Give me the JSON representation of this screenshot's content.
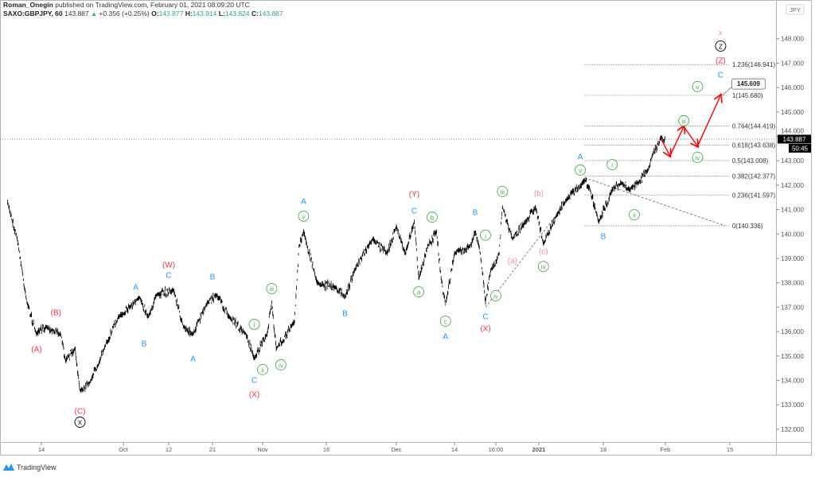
{
  "header": {
    "author": "Roman_Onegin",
    "published": "published on TradingView.com, February 01, 2021 08:09:20 UTC",
    "symbol": "SAXO:GBPJPY, 60",
    "last": "143.887",
    "change": "+0.356 (+0.25%)",
    "o_label": "O:",
    "o": "143.877",
    "h_label": "H:",
    "h": "143.914",
    "l_label": "L:",
    "l": "143.824",
    "c_label": "C:",
    "c": "143.887"
  },
  "footer": {
    "brand": "TradingView"
  },
  "colors": {
    "up": "#26a69a",
    "wave_red": "#f23645",
    "wave_blue": "#2196f3",
    "wave_green": "#4caf50",
    "wave_pink": "#f48fb1",
    "arrow": "#ff0000",
    "candle": "#000000"
  },
  "chart_data": {
    "type": "line",
    "currency": "JPY",
    "last_price": "143.887",
    "countdown": "50:45",
    "ylim": [
      131.5,
      148.8
    ],
    "y_ticks": [
      "148.000",
      "147.000",
      "146.000",
      "145.000",
      "144.000",
      "143.000",
      "142.000",
      "141.000",
      "140.000",
      "139.000",
      "138.000",
      "137.000",
      "136.000",
      "135.000",
      "134.000",
      "133.000",
      "132.000"
    ],
    "x_ticks": [
      {
        "label": "14",
        "date": "2020-09-14"
      },
      {
        "label": "Oct",
        "date": "2020-10-01"
      },
      {
        "label": "12",
        "date": "2020-10-12"
      },
      {
        "label": "21",
        "date": "2020-10-21"
      },
      {
        "label": "Nov",
        "date": "2020-11-02"
      },
      {
        "label": "16",
        "date": "2020-11-16"
      },
      {
        "label": "Dec",
        "date": "2020-12-01"
      },
      {
        "label": "14",
        "date": "2020-12-14"
      },
      {
        "label": "16:00",
        "date": "2020-12-22"
      },
      {
        "label": "2021",
        "date": "2021-01-04"
      },
      {
        "label": "18",
        "date": "2021-01-18"
      },
      {
        "label": "Feb",
        "date": "2021-02-01"
      },
      {
        "label": "15",
        "date": "2021-02-15"
      }
    ],
    "price_path": [
      [
        "2020-09-07",
        141.3
      ],
      [
        "2020-09-09",
        139.8
      ],
      [
        "2020-09-11",
        137.2
      ],
      [
        "2020-09-13",
        135.9
      ],
      [
        "2020-09-15",
        136.2
      ],
      [
        "2020-09-18",
        135.9
      ],
      [
        "2020-09-19",
        134.8
      ],
      [
        "2020-09-21",
        135.3
      ],
      [
        "2020-09-22",
        133.6
      ],
      [
        "2020-09-24",
        133.9
      ],
      [
        "2020-09-27",
        135.3
      ],
      [
        "2020-09-30",
        136.6
      ],
      [
        "2020-10-05",
        137.4
      ],
      [
        "2020-10-07",
        136.6
      ],
      [
        "2020-10-09",
        137.5
      ],
      [
        "2020-10-13",
        137.7
      ],
      [
        "2020-10-15",
        136.2
      ],
      [
        "2020-10-17",
        135.9
      ],
      [
        "2020-10-20",
        137.2
      ],
      [
        "2020-10-22",
        137.5
      ],
      [
        "2020-10-25",
        136.6
      ],
      [
        "2020-10-29",
        135.9
      ],
      [
        "2020-10-31",
        134.9
      ],
      [
        "2020-11-03",
        135.9
      ],
      [
        "2020-11-04",
        137.2
      ],
      [
        "2020-11-05",
        135.3
      ],
      [
        "2020-11-09",
        136.4
      ],
      [
        "2020-11-10",
        139.5
      ],
      [
        "2020-11-11",
        140.1
      ],
      [
        "2020-11-14",
        138.0
      ],
      [
        "2020-11-18",
        137.8
      ],
      [
        "2020-11-20",
        137.4
      ],
      [
        "2020-11-22",
        138.5
      ],
      [
        "2020-11-26",
        139.8
      ],
      [
        "2020-11-29",
        139.2
      ],
      [
        "2020-12-01",
        140.3
      ],
      [
        "2020-12-03",
        139.2
      ],
      [
        "2020-12-05",
        140.5
      ],
      [
        "2020-12-06",
        138.2
      ],
      [
        "2020-12-08",
        139.5
      ],
      [
        "2020-12-10",
        140.1
      ],
      [
        "2020-12-11",
        138.2
      ],
      [
        "2020-12-12",
        137.1
      ],
      [
        "2020-12-14",
        139.2
      ],
      [
        "2020-12-17",
        139.5
      ],
      [
        "2020-12-18",
        140.1
      ],
      [
        "2020-12-19",
        139.2
      ],
      [
        "2020-12-20",
        137.2
      ],
      [
        "2020-12-21",
        138.5
      ],
      [
        "2020-12-23",
        139.2
      ],
      [
        "2020-12-24",
        141.1
      ],
      [
        "2020-12-27",
        139.8
      ],
      [
        "2020-12-31",
        140.5
      ],
      [
        "2021-01-03",
        141.1
      ],
      [
        "2021-01-05",
        139.6
      ],
      [
        "2021-01-08",
        140.8
      ],
      [
        "2021-01-10",
        141.4
      ],
      [
        "2021-01-14",
        142.2
      ],
      [
        "2021-01-15",
        141.9
      ],
      [
        "2021-01-17",
        140.5
      ],
      [
        "2021-01-20",
        141.8
      ],
      [
        "2021-01-22",
        142.1
      ],
      [
        "2021-01-24",
        141.8
      ],
      [
        "2021-01-26",
        142.1
      ],
      [
        "2021-01-28",
        142.6
      ],
      [
        "2021-01-29",
        143.2
      ],
      [
        "2021-01-31",
        143.95
      ],
      [
        "2021-02-01",
        143.887
      ]
    ],
    "fib_levels": [
      {
        "label": "1.236(146.941)",
        "price": 146.941
      },
      {
        "label": "1(145.680)",
        "price": 145.68
      },
      {
        "label": "0.764(144.419)",
        "price": 144.419
      },
      {
        "label": "0.618(143.638)",
        "price": 143.638
      },
      {
        "label": "0.5(143.008)",
        "price": 143.008
      },
      {
        "label": "0.382(142.377)",
        "price": 142.377
      },
      {
        "label": "0.236(141.597)",
        "price": 141.597
      },
      {
        "label": "0(140.336)",
        "price": 140.336
      }
    ],
    "fib_range": [
      "2021-01-14",
      "2021-02-11"
    ],
    "trend_lines": [
      [
        [
          "2020-12-20",
          137.0
        ],
        [
          "2021-01-14",
          142.3
        ]
      ],
      [
        [
          "2021-01-14",
          142.3
        ],
        [
          "2021-02-14",
          140.336
        ]
      ]
    ],
    "forecast_path": [
      [
        "2021-01-31",
        143.9
      ],
      [
        "2021-02-02",
        143.2
      ],
      [
        "2021-02-05",
        144.4
      ],
      [
        "2021-02-08",
        143.6
      ],
      [
        "2021-02-13",
        145.68
      ]
    ],
    "price_callout": {
      "label": "145.609",
      "date": "2021-02-13",
      "price": 145.609
    },
    "wave_labels": [
      {
        "t": "(C)",
        "c": "red",
        "d": "2020-09-22",
        "p": 132.75
      },
      {
        "t": "X",
        "c": "black",
        "ring": true,
        "d": "2020-09-22",
        "p": 132.29
      },
      {
        "t": "(A)",
        "c": "red",
        "d": "2020-09-13",
        "p": 135.29
      },
      {
        "t": "(B)",
        "c": "red",
        "d": "2020-09-17",
        "p": 136.79
      },
      {
        "t": "(W)",
        "c": "red",
        "d": "2020-10-12",
        "p": 138.74
      },
      {
        "t": "C",
        "c": "blue",
        "d": "2020-10-12",
        "p": 138.32
      },
      {
        "t": "A",
        "c": "blue",
        "d": "2020-10-04",
        "p": 137.83
      },
      {
        "t": "B",
        "c": "blue",
        "d": "2020-10-06",
        "p": 135.52
      },
      {
        "t": "B",
        "c": "blue",
        "d": "2020-10-21",
        "p": 138.25
      },
      {
        "t": "A",
        "c": "blue",
        "d": "2020-10-17",
        "p": 134.9
      },
      {
        "t": "C",
        "c": "blue",
        "d": "2020-10-31",
        "p": 134.02
      },
      {
        "t": "(X)",
        "c": "red",
        "d": "2020-10-31",
        "p": 133.43
      },
      {
        "t": "i",
        "c": "green",
        "ring": true,
        "d": "2020-10-31",
        "p": 136.3
      },
      {
        "t": "ii",
        "c": "green",
        "ring": true,
        "d": "2020-11-02",
        "p": 134.37
      },
      {
        "t": "iii",
        "c": "green",
        "ring": true,
        "d": "2020-11-04",
        "p": 137.76
      },
      {
        "t": "iv",
        "c": "green",
        "ring": true,
        "d": "2020-11-06",
        "p": 134.64
      },
      {
        "t": "v",
        "c": "green",
        "ring": true,
        "d": "2020-11-11",
        "p": 140.73
      },
      {
        "t": "A",
        "c": "blue",
        "d": "2020-11-11",
        "p": 141.35
      },
      {
        "t": "B",
        "c": "blue",
        "d": "2020-11-20",
        "p": 136.75
      },
      {
        "t": "(Y)",
        "c": "red",
        "d": "2020-12-05",
        "p": 141.64
      },
      {
        "t": "C",
        "c": "blue",
        "d": "2020-12-05",
        "p": 140.95
      },
      {
        "t": "b",
        "c": "green",
        "ring": true,
        "d": "2020-12-09",
        "p": 140.69
      },
      {
        "t": "a",
        "c": "green",
        "ring": true,
        "d": "2020-12-06",
        "p": 137.63
      },
      {
        "t": "c",
        "c": "green",
        "ring": true,
        "d": "2020-12-12",
        "p": 136.43
      },
      {
        "t": "A",
        "c": "blue",
        "d": "2020-12-12",
        "p": 135.81
      },
      {
        "t": "B",
        "c": "blue",
        "d": "2020-12-18",
        "p": 140.89
      },
      {
        "t": "i",
        "c": "green",
        "ring": true,
        "d": "2020-12-20",
        "p": 139.95
      },
      {
        "t": "iv",
        "c": "green",
        "ring": true,
        "d": "2020-12-22",
        "p": 137.47
      },
      {
        "t": "C",
        "c": "blue",
        "d": "2020-12-20",
        "p": 136.62
      },
      {
        "t": "(X)",
        "c": "red",
        "d": "2020-12-20",
        "p": 136.13
      },
      {
        "t": "iii",
        "c": "green",
        "ring": true,
        "d": "2020-12-24",
        "p": 141.74
      },
      {
        "t": "(b)",
        "c": "pink",
        "d": "2021-01-04",
        "p": 141.67
      },
      {
        "t": "(a)",
        "c": "pink",
        "d": "2020-12-27",
        "p": 138.9
      },
      {
        "t": "(c)",
        "c": "pink",
        "d": "2021-01-05",
        "p": 139.29
      },
      {
        "t": "iv",
        "c": "green",
        "ring": true,
        "d": "2021-01-05",
        "p": 138.67
      },
      {
        "t": "A",
        "c": "blue",
        "d": "2021-01-13",
        "p": 143.17
      },
      {
        "t": "v",
        "c": "green",
        "ring": true,
        "d": "2021-01-13",
        "p": 142.62
      },
      {
        "t": "i",
        "c": "green",
        "ring": true,
        "d": "2021-01-20",
        "p": 142.84
      },
      {
        "t": "B",
        "c": "blue",
        "d": "2021-01-18",
        "p": 139.91
      },
      {
        "t": "ii",
        "c": "green",
        "ring": true,
        "d": "2021-01-25",
        "p": 140.79
      },
      {
        "t": "iii",
        "c": "green",
        "ring": true,
        "d": "2021-02-05",
        "p": 144.64
      },
      {
        "t": "iv",
        "c": "green",
        "ring": true,
        "d": "2021-02-08",
        "p": 143.14
      },
      {
        "t": "v",
        "c": "green",
        "ring": true,
        "d": "2021-02-08",
        "p": 146.04
      },
      {
        "t": "C",
        "c": "blue",
        "d": "2021-02-13",
        "p": 146.53
      },
      {
        "t": "(Z)",
        "c": "red",
        "d": "2021-02-13",
        "p": 147.11
      },
      {
        "t": "Z",
        "c": "black",
        "ring": true,
        "d": "2021-02-13",
        "p": 147.7
      },
      {
        "t": "x",
        "c": "pink",
        "d": "2021-02-13",
        "p": 148.25
      }
    ]
  }
}
